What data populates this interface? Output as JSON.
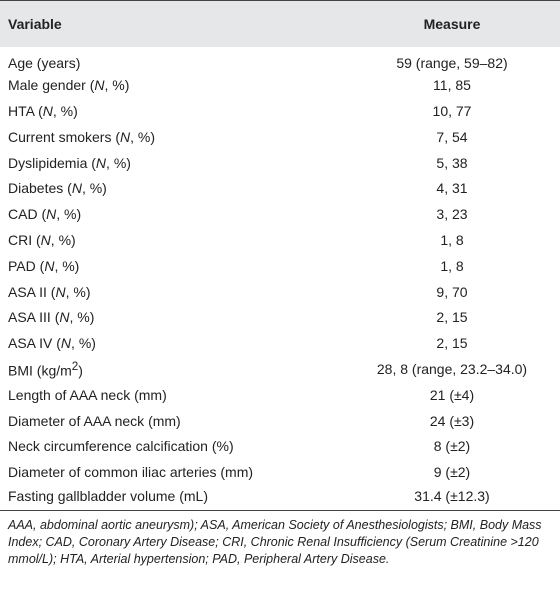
{
  "table": {
    "header": [
      "Variable",
      "Measure"
    ],
    "rows": [
      [
        [
          "Age (years)"
        ],
        "59 (range, 59–82)"
      ],
      [
        [
          "Male gender (",
          {
            "text": "N",
            "style": "italic"
          },
          ", %)"
        ],
        "11, 85"
      ],
      [
        [
          "HTA (",
          {
            "text": "N",
            "style": "italic"
          },
          ", %)"
        ],
        "10, 77"
      ],
      [
        [
          "Current smokers (",
          {
            "text": "N",
            "style": "italic"
          },
          ", %)"
        ],
        "7, 54"
      ],
      [
        [
          "Dyslipidemia (",
          {
            "text": "N",
            "style": "italic"
          },
          ", %)"
        ],
        "5, 38"
      ],
      [
        [
          "Diabetes (",
          {
            "text": "N",
            "style": "italic"
          },
          ", %)"
        ],
        "4, 31"
      ],
      [
        [
          "CAD (",
          {
            "text": "N",
            "style": "italic"
          },
          ", %)"
        ],
        "3, 23"
      ],
      [
        [
          "CRI (",
          {
            "text": "N",
            "style": "italic"
          },
          ", %)"
        ],
        "1, 8"
      ],
      [
        [
          "PAD (",
          {
            "text": "N",
            "style": "italic"
          },
          ", %)"
        ],
        "1, 8"
      ],
      [
        [
          "ASA II (",
          {
            "text": "N",
            "style": "italic"
          },
          ", %)"
        ],
        "9, 70"
      ],
      [
        [
          "ASA III (",
          {
            "text": "N",
            "style": "italic"
          },
          ", %)"
        ],
        "2, 15"
      ],
      [
        [
          "ASA IV (",
          {
            "text": "N",
            "style": "italic"
          },
          ", %)"
        ],
        "2, 15"
      ],
      [
        [
          "BMI (kg/m",
          {
            "text": "2",
            "style": "superscript"
          },
          ")"
        ],
        "28, 8 (range, 23.2–34.0)"
      ],
      [
        [
          "Length of AAA neck (mm)"
        ],
        "21 (±4)"
      ],
      [
        [
          "Diameter of AAA neck (mm)"
        ],
        "24 (±3)"
      ],
      [
        [
          "Neck circumference calcification (%)"
        ],
        "8 (±2)"
      ],
      [
        [
          "Diameter of common iliac arteries (mm)"
        ],
        "9 (±2)"
      ],
      [
        [
          "Fasting gallbladder volume (mL)"
        ],
        "31.4 (±12.3)"
      ]
    ],
    "footnote": "AAA, abdominal aortic aneurysm); ASA, American Society of Anesthesiologists; BMI, Body Mass Index; CAD, Coronary Artery Disease; CRI, Chronic Renal Insufficiency (Serum Creatinine >120 mmol/L); HTA, Arterial hypertension; PAD, Peripheral Artery Disease."
  }
}
